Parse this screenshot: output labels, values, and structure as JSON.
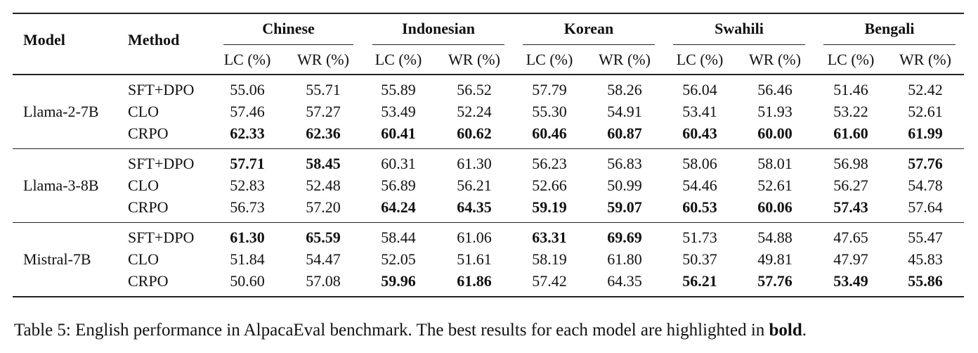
{
  "table": {
    "header": {
      "model": "Model",
      "method": "Method"
    },
    "groups": [
      {
        "name": "Chinese",
        "columns": [
          "LC (%)",
          "WR (%)"
        ]
      },
      {
        "name": "Indonesian",
        "columns": [
          "LC (%)",
          "WR (%)"
        ]
      },
      {
        "name": "Korean",
        "columns": [
          "LC (%)",
          "WR (%)"
        ]
      },
      {
        "name": "Swahili",
        "columns": [
          "LC (%)",
          "WR (%)"
        ]
      },
      {
        "name": "Bengali",
        "columns": [
          "LC (%)",
          "WR (%)"
        ]
      }
    ],
    "models": [
      {
        "name": "Llama-2-7B",
        "rows": [
          {
            "method": "SFT+DPO",
            "values": [
              "55.06",
              "55.71",
              "55.89",
              "56.52",
              "57.79",
              "58.26",
              "56.04",
              "56.46",
              "51.46",
              "52.42"
            ],
            "bold": [
              false,
              false,
              false,
              false,
              false,
              false,
              false,
              false,
              false,
              false
            ]
          },
          {
            "method": "CLO",
            "values": [
              "57.46",
              "57.27",
              "53.49",
              "52.24",
              "55.30",
              "54.91",
              "53.41",
              "51.93",
              "53.22",
              "52.61"
            ],
            "bold": [
              false,
              false,
              false,
              false,
              false,
              false,
              false,
              false,
              false,
              false
            ]
          },
          {
            "method": "CRPO",
            "values": [
              "62.33",
              "62.36",
              "60.41",
              "60.62",
              "60.46",
              "60.87",
              "60.43",
              "60.00",
              "61.60",
              "61.99"
            ],
            "bold": [
              true,
              true,
              true,
              true,
              true,
              true,
              true,
              true,
              true,
              true
            ]
          }
        ]
      },
      {
        "name": "Llama-3-8B",
        "rows": [
          {
            "method": "SFT+DPO",
            "values": [
              "57.71",
              "58.45",
              "60.31",
              "61.30",
              "56.23",
              "56.83",
              "58.06",
              "58.01",
              "56.98",
              "57.76"
            ],
            "bold": [
              true,
              true,
              false,
              false,
              false,
              false,
              false,
              false,
              false,
              true
            ]
          },
          {
            "method": "CLO",
            "values": [
              "52.83",
              "52.48",
              "56.89",
              "56.21",
              "52.66",
              "50.99",
              "54.46",
              "52.61",
              "56.27",
              "54.78"
            ],
            "bold": [
              false,
              false,
              false,
              false,
              false,
              false,
              false,
              false,
              false,
              false
            ]
          },
          {
            "method": "CRPO",
            "values": [
              "56.73",
              "57.20",
              "64.24",
              "64.35",
              "59.19",
              "59.07",
              "60.53",
              "60.06",
              "57.43",
              "57.64"
            ],
            "bold": [
              false,
              false,
              true,
              true,
              true,
              true,
              true,
              true,
              true,
              false
            ]
          }
        ]
      },
      {
        "name": "Mistral-7B",
        "rows": [
          {
            "method": "SFT+DPO",
            "values": [
              "61.30",
              "65.59",
              "58.44",
              "61.06",
              "63.31",
              "69.69",
              "51.73",
              "54.88",
              "47.65",
              "55.47"
            ],
            "bold": [
              true,
              true,
              false,
              false,
              true,
              true,
              false,
              false,
              false,
              false
            ]
          },
          {
            "method": "CLO",
            "values": [
              "51.84",
              "54.47",
              "52.05",
              "51.61",
              "58.19",
              "61.80",
              "50.37",
              "49.81",
              "47.97",
              "45.83"
            ],
            "bold": [
              false,
              false,
              false,
              false,
              false,
              false,
              false,
              false,
              false,
              false
            ]
          },
          {
            "method": "CRPO",
            "values": [
              "50.60",
              "57.08",
              "59.96",
              "61.86",
              "57.42",
              "64.35",
              "56.21",
              "57.76",
              "53.49",
              "55.86"
            ],
            "bold": [
              false,
              false,
              true,
              true,
              false,
              false,
              true,
              true,
              true,
              true
            ]
          }
        ]
      }
    ]
  },
  "caption": {
    "parts": [
      {
        "text": "Table 5: English performance in AlpacaEval benchmark. The best results for each model are highlighted in ",
        "bold": false
      },
      {
        "text": "bold",
        "bold": true
      },
      {
        "text": ".",
        "bold": false
      }
    ]
  }
}
